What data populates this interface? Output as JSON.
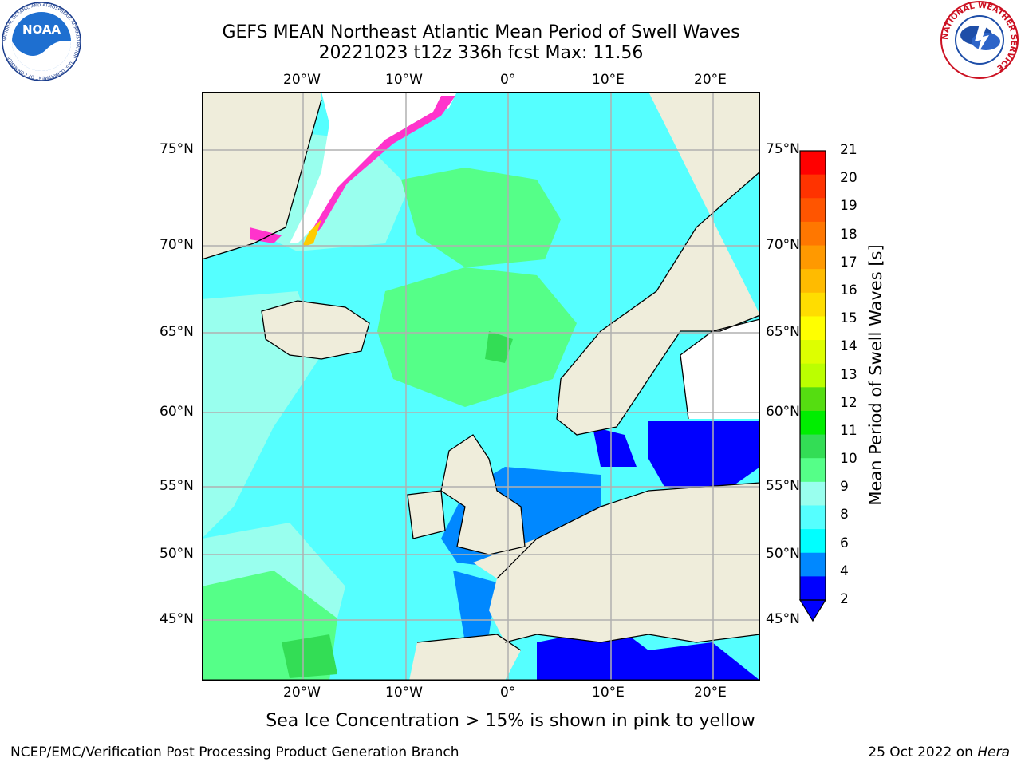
{
  "header": {
    "title_line1": "GEFS MEAN Northeast Atlantic Mean Period of Swell Waves",
    "title_line2": "20221023 t12z 336h fcst   Max: 11.56"
  },
  "logos": {
    "left_text": "NOAA",
    "left_ring": "NATIONAL OCEANIC AND ATMOSPHERIC ADMINISTRATION · U.S. DEPARTMENT OF COMMERCE",
    "right_ring": "NATIONAL WEATHER SERVICE"
  },
  "axes": {
    "lon_ticks": [
      "20°W",
      "10°W",
      "0°",
      "10°E",
      "20°E"
    ],
    "lat_ticks": [
      "75°N",
      "70°N",
      "65°N",
      "60°N",
      "55°N",
      "50°N",
      "45°N"
    ]
  },
  "colorbar": {
    "label": "Mean Period of Swell Waves [s]",
    "ticks": [
      "21",
      "20",
      "19",
      "18",
      "17",
      "16",
      "15",
      "14",
      "13",
      "12",
      "11",
      "10",
      "9",
      "8",
      "6",
      "4",
      "2"
    ],
    "colors": [
      "#ff0000",
      "#ff3300",
      "#ff5500",
      "#ff7700",
      "#ff9900",
      "#ffbb00",
      "#ffdd00",
      "#ffff00",
      "#ddff00",
      "#bbff00",
      "#55dd11",
      "#00ee00",
      "#33dd55",
      "#55ff88",
      "#99ffee",
      "#55ffff",
      "#00ffff",
      "#0088ff",
      "#0000ff"
    ]
  },
  "map_colors": {
    "land": "#efeddb",
    "ice": "#ffffff",
    "open_ocean": "#55ffff",
    "light_swell": "#99ffee",
    "green_swell": "#55ff88",
    "bright_green": "#33dd55",
    "blue_shelf": "#0088ff",
    "deep_blue": "#0000ff",
    "ice_pink": "#ff33cc",
    "ice_yellow": "#ffcc00",
    "grid": "#b0b0b0"
  },
  "notes": {
    "ice": "Sea Ice Concentration > 15% is shown in pink to yellow"
  },
  "footer": {
    "left": "NCEP/EMC/Verification Post Processing Product Generation Branch",
    "right_prefix": "25 Oct 2022 on ",
    "right_host": "Hera"
  }
}
